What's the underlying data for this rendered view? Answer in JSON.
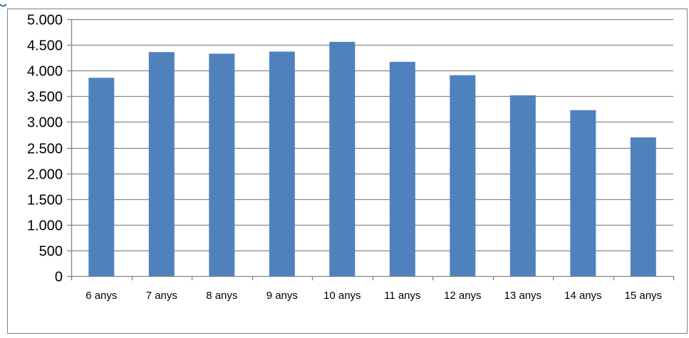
{
  "chart_data": {
    "type": "bar",
    "title": "",
    "xlabel": "",
    "ylabel": "",
    "categories": [
      "6 anys",
      "7 anys",
      "8 anys",
      "9 anys",
      "10 anys",
      "11 anys",
      "12 anys",
      "13 anys",
      "14 anys",
      "15 anys"
    ],
    "values": [
      3860,
      4360,
      4330,
      4370,
      4560,
      4170,
      3910,
      3520,
      3230,
      2700
    ],
    "ylim": [
      0,
      5000
    ],
    "yticks": [
      0,
      500,
      1000,
      1500,
      2000,
      2500,
      3000,
      3500,
      4000,
      4500,
      5000
    ],
    "ytick_labels": [
      "0",
      "500",
      "1.000",
      "1.500",
      "2.000",
      "2.500",
      "3.000",
      "3.500",
      "4.000",
      "4.500",
      "5.000"
    ],
    "grid": true,
    "legend": "none",
    "colors": {
      "bar": "#4f81bd",
      "grid": "#868686",
      "axis": "#868686",
      "frame": "#7f7f7f",
      "top_accent": "#2e75b6"
    }
  }
}
